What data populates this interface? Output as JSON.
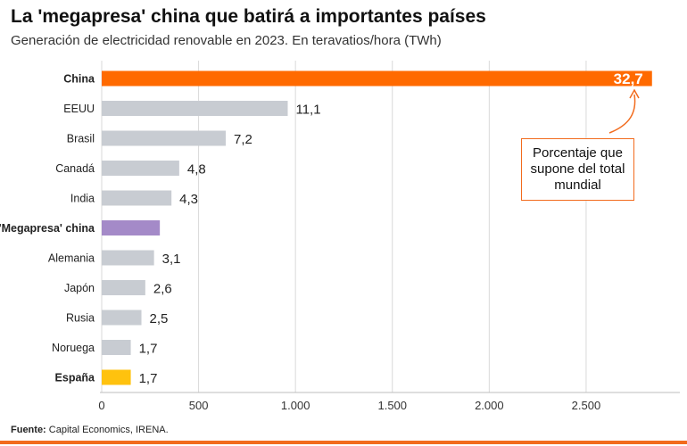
{
  "header": {
    "title": "La 'megapresa' china que batirá a importantes países",
    "subtitle": "Generación de electricidad renovable en 2023. En teravatios/hora (TWh)"
  },
  "callout": {
    "text": "Porcentaje que supone del total mundial"
  },
  "footer": {
    "source_label": "Fuente:",
    "source_text": " Capital Economics, IRENA."
  },
  "colors": {
    "china": "#ff6a00",
    "megapresa": "#a48ac8",
    "espana": "#ffc20e",
    "default": "#c8ccd2",
    "grid": "#d9d9d9",
    "accent": "#f26b1d"
  },
  "chart_data": {
    "type": "bar",
    "orientation": "horizontal",
    "categories": [
      "China",
      "EEUU",
      "Brasil",
      "Canadá",
      "India",
      "'Megapresa' china",
      "Alemania",
      "Japón",
      "Rusia",
      "Noruega",
      "España"
    ],
    "values": [
      2840,
      960,
      640,
      400,
      360,
      300,
      270,
      225,
      205,
      150,
      150
    ],
    "labels": [
      "32,7",
      "11,1",
      "7,2",
      "4,8",
      "4,3",
      "",
      "3,1",
      "2,6",
      "2,5",
      "1,7",
      "1,7"
    ],
    "bold_categories": [
      "China",
      "'Megapresa' china",
      "España"
    ],
    "highlight": {
      "China": "china",
      "'Megapresa' china": "megapresa",
      "España": "espana"
    },
    "xticks": [
      0,
      500,
      1000,
      1500,
      2000,
      2500
    ],
    "xtick_labels": [
      "0",
      "500",
      "1.000",
      "1.500",
      "2.000",
      "2.500"
    ],
    "xlim": [
      0,
      2900
    ],
    "grid": true
  }
}
